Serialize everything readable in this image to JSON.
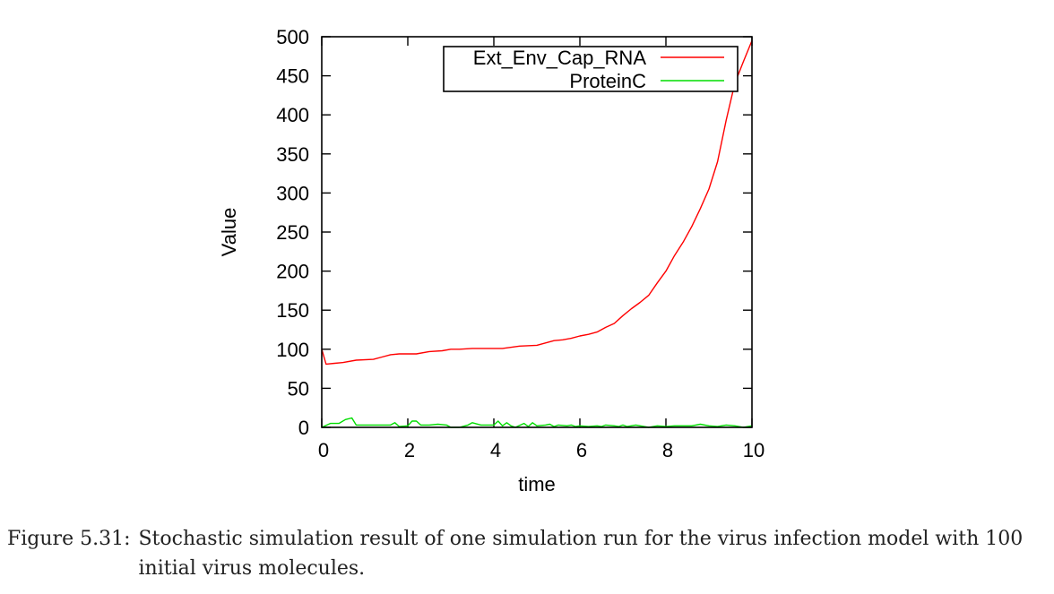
{
  "chart_data": {
    "type": "line",
    "xlabel": "time",
    "ylabel": "Value",
    "xlim": [
      0,
      10
    ],
    "ylim": [
      0,
      500
    ],
    "xticks": [
      0,
      2,
      4,
      6,
      8,
      10
    ],
    "yticks": [
      0,
      50,
      100,
      150,
      200,
      250,
      300,
      350,
      400,
      450,
      500
    ],
    "legend_position": "top-right",
    "series": [
      {
        "name": "Ext_Env_Cap_RNA",
        "color": "#ff0000",
        "x": [
          0,
          0.1,
          0.3,
          0.5,
          0.8,
          1.2,
          1.4,
          1.6,
          1.8,
          2.0,
          2.2,
          2.5,
          2.8,
          3.0,
          3.2,
          3.5,
          3.8,
          4.2,
          4.6,
          5.0,
          5.4,
          5.6,
          5.8,
          6.0,
          6.2,
          6.4,
          6.6,
          6.8,
          7.0,
          7.2,
          7.4,
          7.6,
          7.8,
          8.0,
          8.2,
          8.4,
          8.6,
          8.8,
          9.0,
          9.2,
          9.4,
          9.6,
          9.8,
          10.0
        ],
        "y": [
          100,
          81,
          82,
          83,
          86,
          87,
          90,
          93,
          94,
          94,
          94,
          97,
          98,
          100,
          100,
          101,
          101,
          101,
          104,
          105,
          111,
          112,
          114,
          117,
          119,
          122,
          128,
          133,
          143,
          152,
          160,
          169,
          185,
          200,
          220,
          237,
          257,
          280,
          305,
          340,
          393,
          440,
          468,
          495
        ]
      },
      {
        "name": "ProteinC",
        "color": "#00dd00",
        "x": [
          0,
          0.2,
          0.4,
          0.55,
          0.7,
          0.8,
          1.0,
          1.3,
          1.6,
          1.7,
          1.8,
          2.0,
          2.1,
          2.2,
          2.3,
          2.5,
          2.7,
          2.9,
          3.0,
          3.2,
          3.4,
          3.5,
          3.7,
          3.9,
          4.0,
          4.1,
          4.2,
          4.3,
          4.4,
          4.5,
          4.7,
          4.8,
          4.9,
          5.0,
          5.2,
          5.3,
          5.4,
          5.5,
          5.7,
          5.8,
          5.9,
          6.0,
          6.2,
          6.4,
          6.5,
          6.6,
          6.8,
          6.9,
          7.0,
          7.1,
          7.3,
          7.4,
          7.6,
          7.8,
          8.0,
          8.2,
          8.4,
          8.6,
          8.8,
          9.0,
          9.2,
          9.4,
          9.6,
          9.8,
          10.0
        ],
        "y": [
          0,
          5,
          5,
          10,
          12,
          3,
          3,
          3,
          3,
          6,
          1,
          2,
          8,
          8,
          3,
          3,
          4,
          3,
          0,
          0,
          3,
          6,
          3,
          3,
          3,
          8,
          2,
          6,
          2,
          0,
          5,
          1,
          6,
          2,
          3,
          4,
          1,
          3,
          2,
          3,
          1,
          2,
          1,
          2,
          1,
          3,
          2,
          1,
          3,
          1,
          3,
          2,
          0,
          2,
          1,
          2,
          2,
          2,
          4,
          2,
          1,
          3,
          2,
          0,
          2
        ]
      }
    ]
  },
  "caption": {
    "label": "Figure 5.31:",
    "text": "Stochastic simulation result of one simulation run for the virus infection model with 100 initial virus molecules."
  }
}
